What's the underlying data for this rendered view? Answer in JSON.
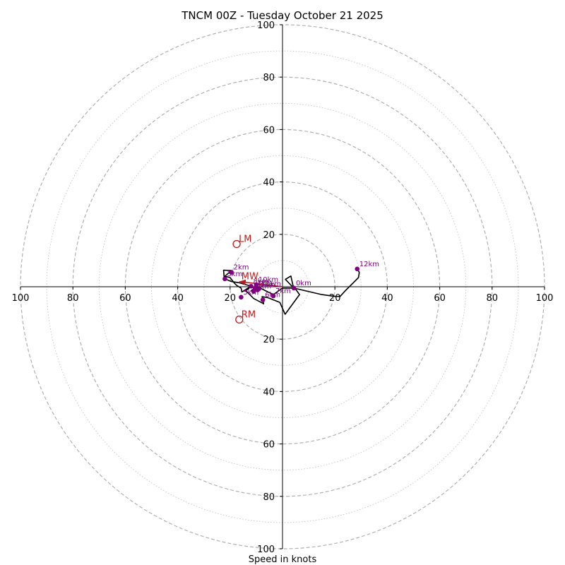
{
  "chart_data": {
    "type": "hodograph",
    "title": "TNCM 00Z - Tuesday October 21 2025",
    "xlabel": "Speed in knots",
    "ring_major": [
      20,
      40,
      60,
      80,
      100
    ],
    "ring_minor": [
      10,
      30,
      50,
      70,
      90
    ],
    "xlim": [
      -100,
      100
    ],
    "ylim": [
      -100,
      100
    ],
    "ticks": {
      "x_left": [
        "100",
        "80",
        "60",
        "40",
        "20"
      ],
      "x_right": [
        "20",
        "40",
        "60",
        "80",
        "100"
      ],
      "y_top": [
        "20",
        "40",
        "60",
        "80",
        "100"
      ],
      "y_bottom": [
        "20",
        "40",
        "60",
        "80",
        "100"
      ]
    },
    "hodograph_trace": [
      [
        4.3,
        -0.5
      ],
      [
        1.1,
        2.8
      ],
      [
        3.2,
        4.1
      ],
      [
        4.0,
        0.5
      ],
      [
        6.5,
        -3.0
      ],
      [
        1.0,
        -10.5
      ],
      [
        -1.0,
        -6.0
      ],
      [
        -5.5,
        -4.2
      ],
      [
        -7.8,
        -3.8
      ],
      [
        -7.2,
        -6.5
      ],
      [
        -11.0,
        -4.5
      ],
      [
        -14.0,
        -1.5
      ],
      [
        -11.5,
        0.5
      ],
      [
        -15.5,
        -2.0
      ],
      [
        -15.8,
        -0.5
      ],
      [
        -17.5,
        0.5
      ],
      [
        -18.5,
        1.5
      ],
      [
        -20.0,
        3.5
      ],
      [
        -22.0,
        4.0
      ],
      [
        -19.5,
        6.2
      ],
      [
        -22.5,
        6.3
      ],
      [
        -22.2,
        3.1
      ],
      [
        -19.5,
        2.0
      ],
      [
        -16.5,
        1.5
      ],
      [
        -13.0,
        0.5
      ],
      [
        -10.5,
        -0.5
      ],
      [
        -12.0,
        -1.5
      ],
      [
        -9.5,
        -1.2
      ],
      [
        -8.5,
        -0.5
      ],
      [
        -6.5,
        -1.5
      ],
      [
        -3.5,
        -3.0
      ],
      [
        0.0,
        -0.5
      ],
      [
        4.3,
        -0.5
      ],
      [
        15.0,
        -3.0
      ],
      [
        20.0,
        -3.7
      ],
      [
        22.0,
        -3.7
      ],
      [
        24.0,
        -1.5
      ],
      [
        27.0,
        1.5
      ],
      [
        29.0,
        3.5
      ],
      [
        29.3,
        5.5
      ],
      [
        28.5,
        6.8
      ]
    ],
    "height_markers": [
      {
        "label": "0km",
        "u": 4.3,
        "v": -0.5
      },
      {
        "label": "1km",
        "u": -10.5,
        "v": -0.5
      },
      {
        "label": "2km",
        "u": -19.5,
        "v": 5.5
      },
      {
        "label": "3km",
        "u": -22.0,
        "v": 3.0
      },
      {
        "label": "4km",
        "u": -9.5,
        "v": -1.2
      },
      {
        "label": "5km",
        "u": -15.8,
        "v": -4.0
      },
      {
        "label": "6km",
        "u": -7.5,
        "v": -5.0
      },
      {
        "label": "7km",
        "u": -3.5,
        "v": -3.5
      },
      {
        "label": "8km",
        "u": -12.0,
        "v": 0.2
      },
      {
        "label": "9km",
        "u": -11.0,
        "v": -1.8
      },
      {
        "label": "10km",
        "u": -10.0,
        "v": 0.8
      },
      {
        "label": "11km",
        "u": -9.0,
        "v": -0.8
      },
      {
        "label": "12km",
        "u": 28.5,
        "v": 6.8
      }
    ],
    "storm_motions": [
      {
        "label": "LM",
        "u": -17.5,
        "v": 16.3
      },
      {
        "label": "RM",
        "u": -16.5,
        "v": -12.5
      },
      {
        "label": "MW",
        "u": -16.5,
        "v": 2.0
      }
    ],
    "mean_wind_arrow": {
      "u": -16.5,
      "v": 2.0
    },
    "colors": {
      "grid_major": "#b0b0b0",
      "grid_minor": "#c8c8c8",
      "trace": "#000000",
      "marker": "#800080",
      "marker_label": "#7a007a",
      "storm": "#c0181b"
    }
  }
}
